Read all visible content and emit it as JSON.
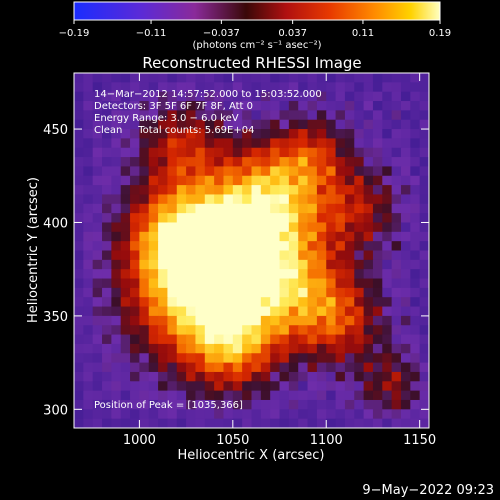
{
  "chart_data": {
    "type": "heatmap",
    "title": "Reconstructed RHESSI Image",
    "xlabel": "Heliocentric X (arcsec)",
    "ylabel": "Heliocentric Y (arcsec)",
    "xlim": [
      965,
      1155
    ],
    "ylim": [
      290,
      480
    ],
    "x_ticks": [
      {
        "value": 1000,
        "label": "1000"
      },
      {
        "value": 1050,
        "label": "1050"
      },
      {
        "value": 1100,
        "label": "1100"
      },
      {
        "value": 1150,
        "label": "1150"
      }
    ],
    "y_ticks": [
      {
        "value": 300,
        "label": "300"
      },
      {
        "value": 350,
        "label": "350"
      },
      {
        "value": 400,
        "label": "400"
      },
      {
        "value": 450,
        "label": "450"
      }
    ],
    "colorbar": {
      "min": -0.19,
      "max": 0.19,
      "tick_values": [
        -0.19,
        -0.11,
        -0.037,
        0.037,
        0.11,
        0.19
      ],
      "tick_labels": [
        "−0.19",
        "−0.11",
        "−0.037",
        "0.037",
        "0.11",
        "0.19"
      ],
      "unit_label": "(photons cm⁻² s⁻¹ asec⁻²)"
    },
    "info_lines": [
      "14−Mar−2012 14:57:52.000 to 15:03:52.000",
      "Detectors: 3F 5F 6F 7F 8F, Att 0",
      "Energy Range: 3.0 − 6.0 keV",
      "Clean     Total counts: 5.69E+04"
    ],
    "peak_label": "Position of Peak = [1035,366]",
    "peak": {
      "x": 1035,
      "y": 366
    },
    "date_stamp": "9−May−2022 09:23"
  }
}
